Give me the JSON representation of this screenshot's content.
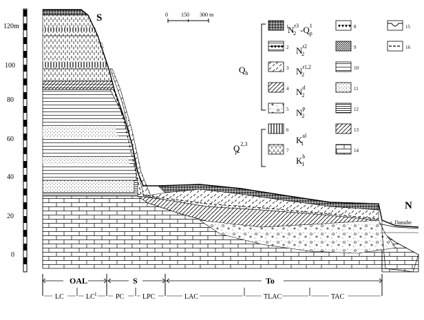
{
  "orientation": {
    "south": "S",
    "north": "N"
  },
  "scale": {
    "ticks": [
      "0",
      "150",
      "300 m"
    ]
  },
  "vertical_axis": {
    "labels": [
      {
        "text": "120m",
        "value": 120
      },
      {
        "text": "100",
        "value": 100
      },
      {
        "text": "80",
        "value": 80
      },
      {
        "text": "60",
        "value": 60
      },
      {
        "text": "40",
        "value": 40
      },
      {
        "text": "20",
        "value": 20
      },
      {
        "text": "0",
        "value": 0
      }
    ]
  },
  "river_label": "r. Danube",
  "units": [
    {
      "text": "OAL"
    },
    {
      "text": "S"
    },
    {
      "text": "To"
    }
  ],
  "subunits": [
    {
      "text": "LC"
    },
    {
      "text": "LC",
      "sup": "I"
    },
    {
      "text": "PC"
    },
    {
      "text": "LPC"
    },
    {
      "text": "LAC"
    },
    {
      "text": "TLAC"
    },
    {
      "text": "TAC"
    }
  ],
  "legend": {
    "groups": [
      {
        "base": "Q",
        "sub": "h",
        "sup": ""
      },
      {
        "base": "Q",
        "sub": "p",
        "sup": "2,3"
      }
    ],
    "items": [
      {
        "num": "1",
        "pattern": "grid-dense"
      },
      {
        "num": "2",
        "pattern": "band-triangles"
      },
      {
        "num": "3",
        "pattern": "diagonal-dashes"
      },
      {
        "num": "4",
        "pattern": "hatch-diagonal"
      },
      {
        "num": "5",
        "pattern": "gravel"
      },
      {
        "num": "6",
        "pattern": "vertical-lines"
      },
      {
        "num": "7",
        "pattern": "vertical-dashes"
      },
      {
        "num": "8",
        "pattern": "triangles"
      },
      {
        "num": "9",
        "pattern": "hatch-dense"
      },
      {
        "num": "10",
        "pattern": "horizontal-lines"
      },
      {
        "num": "11",
        "pattern": "sand-dots"
      },
      {
        "num": "12",
        "pattern": "dense-horizontal-lines"
      },
      {
        "num": "13",
        "pattern": "diagonal-lines"
      },
      {
        "num": "14",
        "pattern": "brick-limestone"
      },
      {
        "num": "15",
        "pattern": "boundary-line"
      },
      {
        "num": "16",
        "pattern": "dashed-boundary"
      }
    ],
    "formations": [
      {
        "base": "N",
        "sub": "2",
        "sup": "r3",
        "suffix_base": "Q",
        "suffix_sub": "p",
        "suffix_sup": "1"
      },
      {
        "base": "N",
        "sub": "2",
        "sup": "r2"
      },
      {
        "base": "N",
        "sub": "2",
        "sup": "r1,2"
      },
      {
        "base": "N",
        "sub": "2",
        "sup": "d"
      },
      {
        "base": "N",
        "sub": "2",
        "sup": "p"
      },
      {
        "base": "K",
        "sub": "1",
        "sup": "al"
      },
      {
        "base": "K",
        "sub": "1",
        "sup": "b"
      }
    ]
  }
}
